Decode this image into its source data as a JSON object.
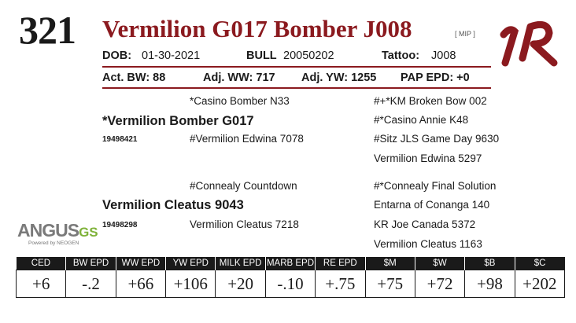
{
  "lot_number": "321",
  "animal_name": "Vermilion G017 Bomber J008",
  "program_tag": "[ MIP ]",
  "info_row": {
    "dob_label": "DOB:",
    "dob_value": "01-30-2021",
    "sex": "BULL",
    "registration": "20050202",
    "tattoo_label": "Tattoo:",
    "tattoo_value": "J008"
  },
  "weights": {
    "act_bw": "Act. BW: 88",
    "adj_ww": "Adj. WW: 717",
    "adj_yw": "Adj. YW: 1255",
    "pap_epd": "PAP EPD: +0"
  },
  "pedigree": {
    "sire": "*Vermilion Bomber G017",
    "sire_reg": "19498421",
    "sire_sire": "*Casino Bomber N33",
    "sire_dam": "#Vermilion Edwina 7078",
    "ss_sire": "#+*KM Broken Bow 002",
    "ss_dam": "#*Casino Annie K48",
    "sd_sire": "#Sitz JLS Game Day 9630",
    "sd_dam": "Vermilion Edwina 5297",
    "dam": "Vermilion Cleatus 9043",
    "dam_reg": "19498298",
    "dam_sire": "#Connealy Countdown",
    "dam_dam": "Vermilion Cleatus 7218",
    "ds_sire": "#*Connealy Final Solution",
    "ds_dam": "Entarna of Conanga 140",
    "dd_sire": "KR Joe Canada 5372",
    "dd_dam": "Vermilion Cleatus 1163"
  },
  "brand": {
    "logo_text": "AR",
    "angus_main": "ANGUS",
    "angus_gs": "GS",
    "angus_sub": "Powered by NEOGEN"
  },
  "epd_table": {
    "headers": [
      "CED",
      "BW EPD",
      "WW EPD",
      "YW EPD",
      "MILK EPD",
      "MARB EPD",
      "RE EPD",
      "$M",
      "$W",
      "$B",
      "$C"
    ],
    "values": [
      "+6",
      "-.2",
      "+66",
      "+106",
      "+20",
      "-.10",
      "+.75",
      "+75",
      "+72",
      "+98",
      "+202"
    ]
  },
  "colors": {
    "accent": "#8b1a1f",
    "text": "#1a1a1a",
    "header_bg": "#1a1a1a",
    "angus_green": "#7fb23a"
  }
}
